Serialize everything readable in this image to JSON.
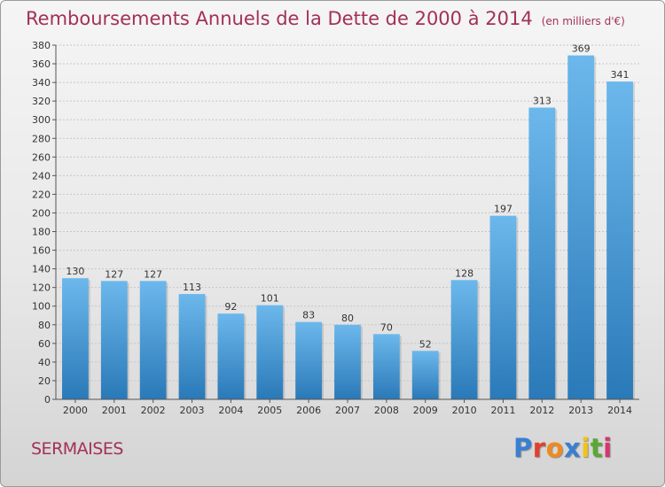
{
  "header": {
    "title": "Remboursements Annuels de la Dette de 2000 à 2014",
    "unit": "(en milliers d'€)"
  },
  "footer": {
    "city": "SERMAISES",
    "logo": "Proxiti"
  },
  "colors": {
    "title": "#a3305a",
    "bar_light": "#6cb8ec",
    "bar_dark": "#2a79b8",
    "logo_letters": [
      "#3a7fd1",
      "#e2402f",
      "#f08a1e",
      "#3a7fd1",
      "#f0c419",
      "#5aa832",
      "#d6356f"
    ]
  },
  "chart_data": {
    "type": "bar",
    "title": "Remboursements Annuels de la Dette de 2000 à 2014",
    "subtitle": "(en milliers d'€)",
    "xlabel": "",
    "ylabel": "",
    "categories": [
      "2000",
      "2001",
      "2002",
      "2003",
      "2004",
      "2005",
      "2006",
      "2007",
      "2008",
      "2009",
      "2010",
      "2011",
      "2012",
      "2013",
      "2014"
    ],
    "values": [
      130,
      127,
      127,
      113,
      92,
      101,
      83,
      80,
      70,
      52,
      128,
      197,
      313,
      369,
      341
    ],
    "data_labels": [
      "130",
      "127",
      "127",
      "113",
      "92",
      "101",
      "83",
      "80",
      "70",
      "52",
      "128",
      "197",
      "313",
      "369",
      "341"
    ],
    "ylim": [
      0,
      380
    ],
    "yticks": [
      0,
      20,
      40,
      60,
      80,
      100,
      120,
      140,
      160,
      180,
      200,
      220,
      240,
      260,
      280,
      300,
      320,
      340,
      360,
      380
    ],
    "grid": true
  }
}
